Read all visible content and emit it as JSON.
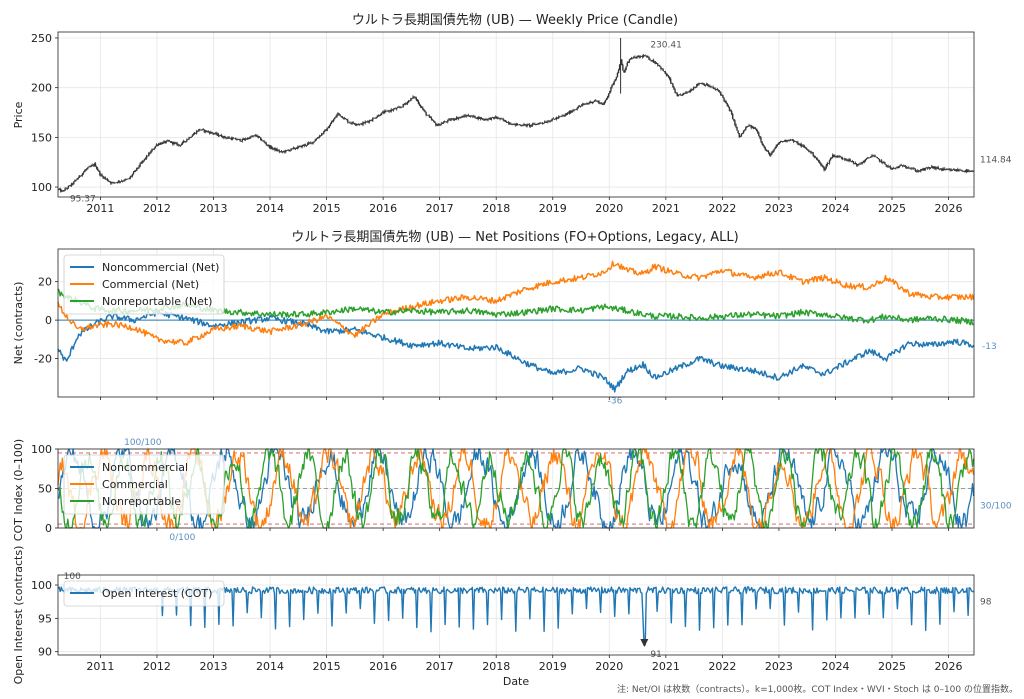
{
  "chart_data": [
    {
      "type": "candlestick",
      "title": "ウルトラ長期国債先物 (UB) — Weekly Price (Candle)",
      "ylabel": "Price",
      "xlabel": "",
      "x_range": [
        2010.25,
        2026.45
      ],
      "ylim": [
        90,
        256
      ],
      "yticks": [
        100,
        150,
        200,
        250
      ],
      "xticks": [
        2011,
        2012,
        2013,
        2014,
        2015,
        2016,
        2017,
        2018,
        2019,
        2020,
        2021,
        2022,
        2023,
        2024,
        2025,
        2026
      ],
      "grid": true,
      "color": "#333333",
      "anchors": [
        [
          2010.25,
          98
        ],
        [
          2010.32,
          95.37
        ],
        [
          2010.5,
          103
        ],
        [
          2010.75,
          118
        ],
        [
          2010.9,
          123
        ],
        [
          2011.0,
          112
        ],
        [
          2011.2,
          104
        ],
        [
          2011.5,
          108
        ],
        [
          2011.75,
          126
        ],
        [
          2012.0,
          143
        ],
        [
          2012.2,
          146
        ],
        [
          2012.4,
          142
        ],
        [
          2012.75,
          158
        ],
        [
          2013.0,
          154
        ],
        [
          2013.2,
          150
        ],
        [
          2013.5,
          147
        ],
        [
          2013.75,
          152
        ],
        [
          2014.0,
          140
        ],
        [
          2014.2,
          135
        ],
        [
          2014.5,
          140
        ],
        [
          2014.75,
          145
        ],
        [
          2015.0,
          158
        ],
        [
          2015.2,
          174
        ],
        [
          2015.4,
          165
        ],
        [
          2015.6,
          163
        ],
        [
          2015.8,
          168
        ],
        [
          2016.0,
          175
        ],
        [
          2016.3,
          180
        ],
        [
          2016.55,
          191
        ],
        [
          2016.75,
          174
        ],
        [
          2016.95,
          162
        ],
        [
          2017.2,
          168
        ],
        [
          2017.5,
          172
        ],
        [
          2017.8,
          168
        ],
        [
          2018.0,
          170
        ],
        [
          2018.3,
          163
        ],
        [
          2018.6,
          162
        ],
        [
          2018.9,
          166
        ],
        [
          2019.2,
          172
        ],
        [
          2019.5,
          182
        ],
        [
          2019.75,
          187
        ],
        [
          2019.9,
          183
        ],
        [
          2020.15,
          215
        ],
        [
          2020.2,
          228
        ],
        [
          2020.25,
          214
        ],
        [
          2020.35,
          229
        ],
        [
          2020.62,
          232
        ],
        [
          2020.85,
          224
        ],
        [
          2021.05,
          210
        ],
        [
          2021.2,
          191
        ],
        [
          2021.4,
          196
        ],
        [
          2021.6,
          205
        ],
        [
          2021.75,
          202
        ],
        [
          2021.95,
          196
        ],
        [
          2022.15,
          175
        ],
        [
          2022.3,
          150
        ],
        [
          2022.45,
          162
        ],
        [
          2022.6,
          158
        ],
        [
          2022.75,
          138
        ],
        [
          2022.85,
          132
        ],
        [
          2023.0,
          145
        ],
        [
          2023.2,
          148
        ],
        [
          2023.45,
          140
        ],
        [
          2023.6,
          133
        ],
        [
          2023.8,
          118
        ],
        [
          2023.95,
          132
        ],
        [
          2024.2,
          128
        ],
        [
          2024.4,
          122
        ],
        [
          2024.65,
          132
        ],
        [
          2024.8,
          126
        ],
        [
          2025.0,
          118
        ],
        [
          2025.2,
          122
        ],
        [
          2025.45,
          116
        ],
        [
          2025.7,
          120
        ],
        [
          2025.95,
          117
        ],
        [
          2026.2,
          117
        ],
        [
          2026.45,
          114.84
        ]
      ],
      "annotations": [
        {
          "label": "95.37",
          "x": 2010.32,
          "y": 95.37
        },
        {
          "label": "230.41",
          "x": 2020.62,
          "y": 230.41
        },
        {
          "label": "114.84",
          "x": 2026.45,
          "y": 114.84
        }
      ],
      "spike": {
        "x": 2020.2,
        "low": 194,
        "high": 250
      }
    },
    {
      "type": "line",
      "title": "ウルトラ長期国債先物 (UB) — Net Positions (FO+Options, Legacy, ALL)",
      "ylabel": "Net (contracts)",
      "xlabel": "",
      "x_range": [
        2010.25,
        2026.45
      ],
      "ylim": [
        -40,
        37
      ],
      "yticks": [
        -20,
        0,
        20
      ],
      "grid": true,
      "legend_position": "top-left",
      "series": [
        {
          "name": "Noncommercial (Net)",
          "color": "#1f77b4",
          "anchors": [
            [
              2010.25,
              -15
            ],
            [
              2010.4,
              -22
            ],
            [
              2010.6,
              -8
            ],
            [
              2010.9,
              -2
            ],
            [
              2011.2,
              2
            ],
            [
              2011.6,
              0
            ],
            [
              2012.0,
              4
            ],
            [
              2012.5,
              1
            ],
            [
              2013.0,
              -3
            ],
            [
              2013.5,
              -1
            ],
            [
              2014.0,
              1
            ],
            [
              2014.6,
              -2
            ],
            [
              2015.0,
              -6
            ],
            [
              2015.5,
              -5
            ],
            [
              2016.0,
              -9
            ],
            [
              2016.5,
              -13
            ],
            [
              2017.0,
              -12
            ],
            [
              2017.5,
              -15
            ],
            [
              2018.0,
              -14
            ],
            [
              2018.5,
              -22
            ],
            [
              2019.0,
              -28
            ],
            [
              2019.5,
              -25
            ],
            [
              2019.9,
              -30
            ],
            [
              2020.1,
              -36
            ],
            [
              2020.3,
              -27
            ],
            [
              2020.6,
              -23
            ],
            [
              2020.8,
              -30
            ],
            [
              2021.2,
              -25
            ],
            [
              2021.6,
              -20
            ],
            [
              2022.0,
              -24
            ],
            [
              2022.5,
              -26
            ],
            [
              2023.0,
              -30
            ],
            [
              2023.4,
              -24
            ],
            [
              2023.8,
              -28
            ],
            [
              2024.2,
              -22
            ],
            [
              2024.6,
              -16
            ],
            [
              2024.9,
              -20
            ],
            [
              2025.3,
              -12
            ],
            [
              2025.7,
              -13
            ],
            [
              2026.1,
              -11
            ],
            [
              2026.45,
              -13
            ]
          ]
        },
        {
          "name": "Commercial (Net)",
          "color": "#ff7f0e",
          "anchors": [
            [
              2010.25,
              8
            ],
            [
              2010.4,
              2
            ],
            [
              2010.6,
              -5
            ],
            [
              2010.9,
              -3
            ],
            [
              2011.2,
              -2
            ],
            [
              2011.6,
              -4
            ],
            [
              2012.0,
              -10
            ],
            [
              2012.5,
              -12
            ],
            [
              2013.0,
              -5
            ],
            [
              2013.5,
              -3
            ],
            [
              2014.0,
              -6
            ],
            [
              2014.6,
              -2
            ],
            [
              2015.0,
              2
            ],
            [
              2015.5,
              -8
            ],
            [
              2016.0,
              3
            ],
            [
              2016.5,
              7
            ],
            [
              2017.0,
              10
            ],
            [
              2017.5,
              12
            ],
            [
              2018.0,
              10
            ],
            [
              2018.5,
              16
            ],
            [
              2019.0,
              20
            ],
            [
              2019.5,
              22
            ],
            [
              2019.9,
              25
            ],
            [
              2020.1,
              30
            ],
            [
              2020.3,
              26
            ],
            [
              2020.6,
              24
            ],
            [
              2020.8,
              28
            ],
            [
              2021.2,
              24
            ],
            [
              2021.6,
              22
            ],
            [
              2022.0,
              26
            ],
            [
              2022.5,
              22
            ],
            [
              2023.0,
              25
            ],
            [
              2023.4,
              20
            ],
            [
              2023.8,
              22
            ],
            [
              2024.2,
              18
            ],
            [
              2024.6,
              17
            ],
            [
              2024.9,
              22
            ],
            [
              2025.3,
              14
            ],
            [
              2025.7,
              12
            ],
            [
              2026.1,
              12
            ],
            [
              2026.45,
              12
            ]
          ]
        },
        {
          "name": "Nonreportable (Net)",
          "color": "#2ca02c",
          "anchors": [
            [
              2010.25,
              15
            ],
            [
              2010.4,
              12
            ],
            [
              2010.6,
              10
            ],
            [
              2010.9,
              6
            ],
            [
              2011.2,
              5
            ],
            [
              2011.6,
              5
            ],
            [
              2012.0,
              6
            ],
            [
              2012.5,
              8
            ],
            [
              2013.0,
              5
            ],
            [
              2013.5,
              4
            ],
            [
              2014.0,
              3
            ],
            [
              2014.6,
              3
            ],
            [
              2015.0,
              4
            ],
            [
              2015.5,
              6
            ],
            [
              2016.0,
              4
            ],
            [
              2016.5,
              5
            ],
            [
              2017.0,
              4
            ],
            [
              2017.5,
              5
            ],
            [
              2018.0,
              3
            ],
            [
              2018.5,
              4
            ],
            [
              2019.0,
              6
            ],
            [
              2019.5,
              5
            ],
            [
              2019.9,
              7
            ],
            [
              2020.1,
              6
            ],
            [
              2020.3,
              5
            ],
            [
              2020.6,
              3
            ],
            [
              2020.8,
              2
            ],
            [
              2021.2,
              2
            ],
            [
              2021.6,
              1
            ],
            [
              2022.0,
              2
            ],
            [
              2022.5,
              3
            ],
            [
              2023.0,
              2
            ],
            [
              2023.4,
              4
            ],
            [
              2023.8,
              3
            ],
            [
              2024.2,
              1
            ],
            [
              2024.6,
              0
            ],
            [
              2024.9,
              2
            ],
            [
              2025.3,
              0
            ],
            [
              2025.7,
              1
            ],
            [
              2026.1,
              0
            ],
            [
              2026.45,
              -1
            ]
          ]
        }
      ],
      "annotations": [
        {
          "label": "-36",
          "x": 2020.1,
          "y": -36
        },
        {
          "label": "-13",
          "x": 2026.45,
          "y": -13
        }
      ]
    },
    {
      "type": "line",
      "title": "",
      "ylabel": "COT Index (0–100)",
      "xlabel": "",
      "x_range": [
        2010.25,
        2026.45
      ],
      "ylim": [
        0,
        100
      ],
      "yticks": [
        0,
        50,
        100
      ],
      "reference_lines": [
        5,
        50,
        95
      ],
      "grid": true,
      "legend_position": "top-left",
      "series": [
        {
          "name": "Noncommercial",
          "color": "#1f77b4"
        },
        {
          "name": "Commercial",
          "color": "#ff7f0e"
        },
        {
          "name": "Nonreportable",
          "color": "#2ca02c"
        }
      ],
      "annotations": [
        {
          "label": "100/100",
          "x": 2011.75,
          "y": 100
        },
        {
          "label": "0/100",
          "x": 2012.45,
          "y": 0
        },
        {
          "label": "30/100",
          "x": 2026.45,
          "y": 30
        }
      ]
    },
    {
      "type": "line",
      "title": "",
      "ylabel": "Open Interest (contracts)",
      "xlabel": "Date",
      "x_range": [
        2010.25,
        2026.45
      ],
      "ylim": [
        89.5,
        101.5
      ],
      "yticks": [
        90,
        95,
        100
      ],
      "xticks": [
        2011,
        2012,
        2013,
        2014,
        2015,
        2016,
        2017,
        2018,
        2019,
        2020,
        2021,
        2022,
        2023,
        2024,
        2025,
        2026
      ],
      "grid": true,
      "legend_position": "top-left",
      "series": [
        {
          "name": "Open Interest (COT)",
          "color": "#1f77b4"
        }
      ],
      "annotations": [
        {
          "label": "100",
          "x": 2010.35,
          "y": 100
        },
        {
          "label": "91",
          "x": 2020.62,
          "y": 91
        },
        {
          "label": "98",
          "x": 2026.45,
          "y": 98
        }
      ]
    }
  ],
  "footnote": "注: Net/OI は枚数（contracts）。k=1,000枚。COT Index・WVI・Stoch は 0–100 の位置指数。"
}
